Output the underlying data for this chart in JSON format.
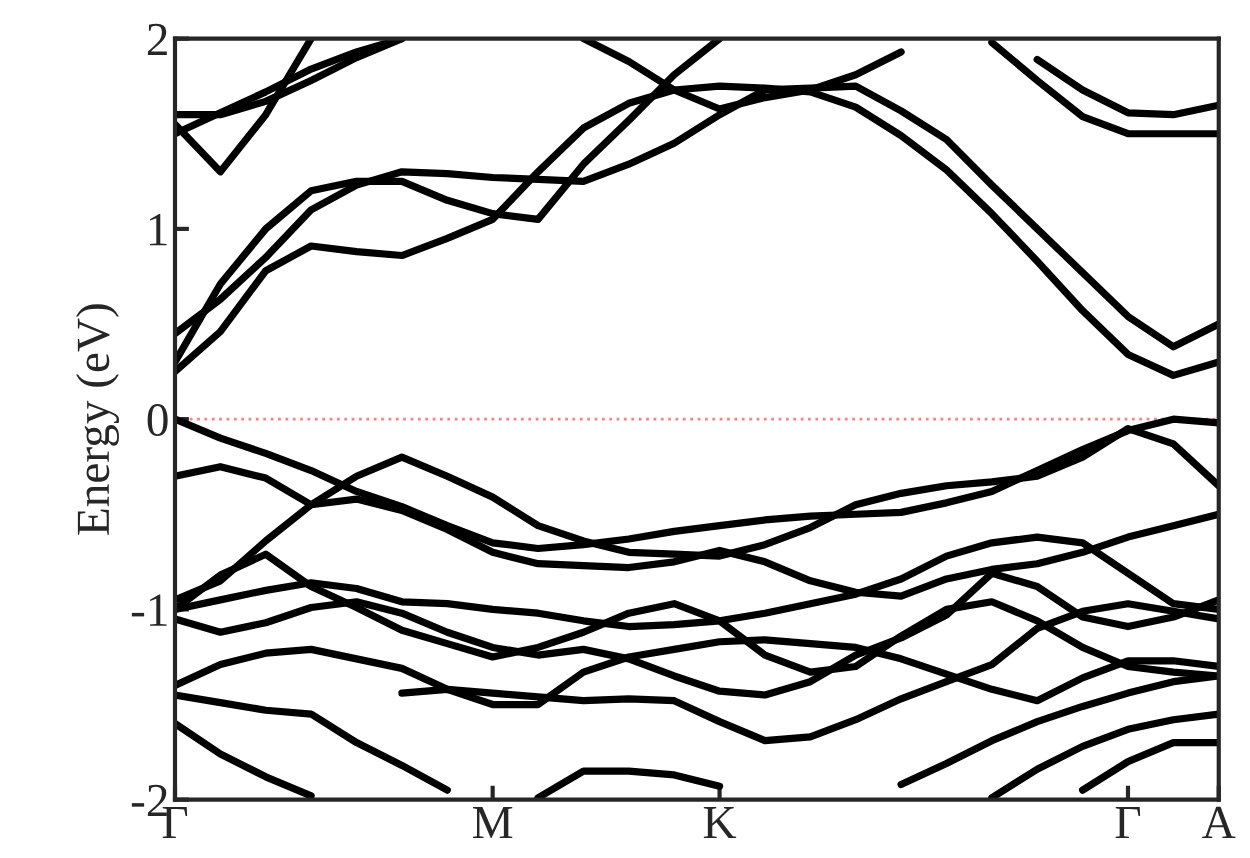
{
  "chart_data": {
    "type": "line",
    "ylabel": "Energy (eV)",
    "ylim": [
      -2,
      2
    ],
    "categories": [
      "Γ",
      null,
      null,
      null,
      null,
      null,
      null,
      "M",
      null,
      null,
      null,
      null,
      "K",
      null,
      null,
      null,
      null,
      null,
      null,
      null,
      null,
      "Γ",
      null,
      "A"
    ],
    "yticks": [
      {
        "value": -2,
        "label": "-2"
      },
      {
        "value": -1,
        "label": "-1"
      },
      0,
      1,
      2
    ],
    "grid": false,
    "marker": "none",
    "line_style": "solid",
    "ref_lines": [
      {
        "axis": "y",
        "value": 0,
        "color": "#ff8080",
        "line_style": "dotted"
      }
    ],
    "series": [
      {
        "color": "#000000",
        "values": [
          0.25,
          0.46,
          0.78,
          0.91,
          0.88,
          0.86,
          0.95,
          1.05,
          1.3,
          1.53,
          1.66,
          1.73,
          1.75,
          1.74,
          1.72,
          1.64,
          1.49,
          1.31,
          1.08,
          0.83,
          0.57,
          0.34,
          0.23,
          0.3
        ]
      },
      {
        "color": "#000000",
        "values": [
          0.45,
          0.63,
          0.85,
          1.1,
          1.23,
          1.3,
          1.29,
          1.27,
          1.26,
          1.25,
          1.34,
          1.45,
          1.6,
          1.73,
          1.74,
          1.75,
          1.62,
          1.47,
          1.23,
          1.0,
          0.77,
          0.54,
          0.38,
          0.5
        ]
      },
      {
        "color": "#000000",
        "values": [
          0.3,
          0.71,
          1.0,
          1.2,
          1.25,
          1.25,
          1.15,
          1.08,
          1.05,
          1.34,
          1.57,
          1.81,
          2.0,
          null,
          null,
          null,
          null,
          null,
          null,
          null,
          null,
          null,
          null,
          null
        ]
      },
      {
        "color": "#000000",
        "values": [
          1.5,
          1.61,
          1.72,
          1.84,
          1.93,
          2.0,
          null,
          null,
          null,
          null,
          null,
          null,
          null,
          null,
          null,
          null,
          null,
          null,
          null,
          null,
          null,
          null,
          null,
          null
        ]
      },
      {
        "color": "#000000",
        "values": [
          1.55,
          1.3,
          1.6,
          2.0,
          null,
          null,
          null,
          null,
          null,
          null,
          null,
          null,
          null,
          null,
          null,
          null,
          null,
          null,
          null,
          null,
          null,
          null,
          null,
          null
        ]
      },
      {
        "color": "#000000",
        "values": [
          1.6,
          1.6,
          1.67,
          1.78,
          1.9,
          2.0,
          null,
          null,
          null,
          null,
          null,
          null,
          null,
          null,
          null,
          null,
          null,
          null,
          null,
          null,
          null,
          null,
          null,
          null
        ]
      },
      {
        "color": "#000000",
        "values": [
          null,
          null,
          null,
          null,
          null,
          null,
          null,
          null,
          null,
          null,
          null,
          null,
          null,
          null,
          null,
          null,
          null,
          null,
          null,
          1.89,
          1.73,
          1.61,
          1.6,
          1.65
        ]
      },
      {
        "color": "#000000",
        "values": [
          null,
          null,
          null,
          null,
          null,
          null,
          null,
          null,
          null,
          null,
          null,
          null,
          null,
          null,
          null,
          null,
          null,
          null,
          1.98,
          1.78,
          1.59,
          1.5,
          1.5,
          1.5
        ]
      },
      {
        "color": "#000000",
        "values": [
          null,
          null,
          null,
          null,
          null,
          null,
          null,
          null,
          null,
          2.0,
          1.88,
          1.73,
          1.63,
          1.69,
          1.73,
          1.81,
          1.93,
          null,
          null,
          null,
          null,
          null,
          null,
          null
        ]
      },
      {
        "color": "#000000",
        "values": [
          0,
          -0.1,
          -0.18,
          -0.27,
          -0.38,
          -0.46,
          -0.56,
          -0.65,
          -0.68,
          -0.66,
          -0.63,
          -0.59,
          -0.56,
          -0.53,
          -0.51,
          -0.5,
          -0.49,
          -0.44,
          -0.38,
          -0.27,
          -0.16,
          -0.06,
          0,
          -0.02
        ]
      },
      {
        "color": "#000000",
        "values": [
          -0.3,
          -0.25,
          -0.31,
          -0.45,
          -0.3,
          -0.2,
          -0.3,
          -0.41,
          -0.56,
          -0.64,
          -0.7,
          -0.71,
          -0.72,
          -0.66,
          -0.57,
          -0.45,
          -0.39,
          -0.35,
          -0.33,
          -0.3,
          -0.2,
          -0.05,
          -0.13,
          -0.35
        ]
      },
      {
        "color": "#000000",
        "values": [
          -0.95,
          -0.85,
          -0.64,
          -0.45,
          -0.42,
          -0.48,
          -0.58,
          -0.7,
          -0.76,
          -0.77,
          -0.78,
          -0.75,
          -0.69,
          -0.75,
          -0.85,
          -0.91,
          -0.93,
          -0.84,
          -0.79,
          -0.76,
          -0.7,
          -0.62,
          -0.56,
          -0.5
        ]
      },
      {
        "color": "#000000",
        "values": [
          -1,
          -0.95,
          -0.9,
          -0.86,
          -0.89,
          -0.96,
          -0.97,
          -1.0,
          -1.02,
          -1.06,
          -1.09,
          -1.08,
          -1.06,
          -1.02,
          -0.97,
          -0.92,
          -0.84,
          -0.72,
          -0.65,
          -0.62,
          -0.65,
          -0.81,
          -0.97,
          -1.0
        ]
      },
      {
        "color": "#000000",
        "values": [
          -1,
          -0.82,
          -0.71,
          -0.88,
          -0.99,
          -1.11,
          -1.18,
          -1.25,
          -1.2,
          -1.12,
          -1.02,
          -0.97,
          -1.06,
          -1.24,
          -1.33,
          -1.3,
          -1.14,
          -1.0,
          -0.96,
          -1.06,
          -1.2,
          -1.3,
          -1.33,
          -1.35
        ]
      },
      {
        "color": "#000000",
        "values": [
          -1.05,
          -1.12,
          -1.07,
          -0.99,
          -0.96,
          -1.02,
          -1.12,
          -1.2,
          -1.24,
          -1.21,
          -1.26,
          -1.35,
          -1.43,
          -1.45,
          -1.38,
          -1.24,
          -1.15,
          -1.03,
          -0.81,
          -0.88,
          -1.04,
          -1.09,
          -1.04,
          -0.95
        ]
      },
      {
        "color": "#000000",
        "values": [
          -1.4,
          -1.29,
          -1.23,
          -1.21,
          -1.26,
          -1.31,
          -1.42,
          -1.5,
          -1.5,
          -1.33,
          -1.25,
          -1.21,
          -1.17,
          -1.16,
          -1.18,
          -1.2,
          -1.26,
          -1.34,
          -1.42,
          -1.48,
          -1.36,
          -1.27,
          -1.27,
          -1.3
        ]
      },
      {
        "color": "#000000",
        "values": [
          -1.45,
          -1.49,
          -1.53,
          -1.55,
          -1.7,
          -1.82,
          -1.95,
          null,
          null,
          null,
          null,
          null,
          null,
          null,
          null,
          null,
          null,
          null,
          null,
          null,
          null,
          null,
          null,
          null
        ]
      },
      {
        "color": "#000000",
        "values": [
          -1.6,
          -1.76,
          -1.88,
          -1.98,
          null,
          null,
          null,
          null,
          null,
          null,
          null,
          null,
          null,
          null,
          null,
          null,
          null,
          null,
          null,
          null,
          null,
          null,
          null,
          null
        ]
      },
      {
        "color": "#000000",
        "values": [
          null,
          null,
          null,
          null,
          null,
          -1.44,
          -1.42,
          -1.44,
          -1.46,
          -1.48,
          -1.47,
          -1.48,
          -1.59,
          -1.69,
          -1.67,
          -1.58,
          -1.47,
          -1.38,
          -1.29,
          -1.1,
          -1.01,
          -0.97,
          -1.01,
          -1.05
        ]
      },
      {
        "color": "#000000",
        "values": [
          null,
          null,
          null,
          null,
          null,
          null,
          null,
          null,
          -1.99,
          -1.85,
          -1.85,
          -1.87,
          -1.93,
          null,
          null,
          null,
          null,
          null,
          null,
          null,
          null,
          null,
          null,
          null
        ]
      },
      {
        "color": "#000000",
        "values": [
          null,
          null,
          null,
          null,
          null,
          null,
          null,
          null,
          null,
          null,
          null,
          null,
          null,
          null,
          null,
          null,
          -1.92,
          -1.81,
          -1.69,
          -1.59,
          -1.51,
          -1.44,
          -1.38,
          -1.35
        ]
      },
      {
        "color": "#000000",
        "values": [
          null,
          null,
          null,
          null,
          null,
          null,
          null,
          null,
          null,
          null,
          null,
          null,
          null,
          null,
          null,
          null,
          null,
          null,
          -1.99,
          -1.84,
          -1.72,
          -1.63,
          -1.58,
          -1.55
        ]
      },
      {
        "color": "#000000",
        "values": [
          null,
          null,
          null,
          null,
          null,
          null,
          null,
          null,
          null,
          null,
          null,
          null,
          null,
          null,
          null,
          null,
          null,
          null,
          null,
          null,
          -1.95,
          -1.8,
          -1.7,
          -1.7
        ]
      }
    ]
  }
}
